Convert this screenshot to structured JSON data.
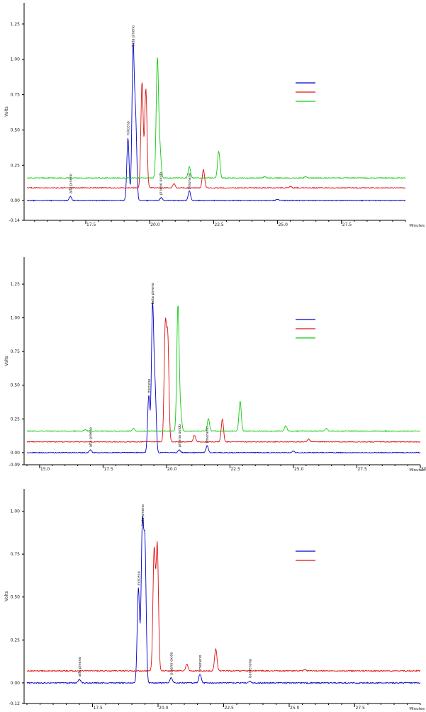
{
  "colors": {
    "blue": "#0000cc",
    "red": "#dd1111",
    "green": "#11cc11",
    "axis": "#000000"
  },
  "chart_data": [
    {
      "type": "line",
      "xunit": "Minutes",
      "ylabel": "Volts",
      "xlim": [
        15.2,
        30.0
      ],
      "ylim": [
        -0.14,
        1.4
      ],
      "xticks": [
        "17.5",
        "20.0",
        "22.5",
        "25.0",
        "27.5"
      ],
      "yticks": [
        "-0.14",
        "0.00",
        "0.25",
        "0.50",
        "0.75",
        "1.00",
        "1.25"
      ],
      "legend_position": "right",
      "annotations": [
        {
          "text": "alfa pineno",
          "x": 16.9,
          "y": 0.03
        },
        {
          "text": "mirceno",
          "x": 19.15,
          "y": 0.44
        },
        {
          "text": "beta pineno",
          "x": 19.35,
          "y": 1.07
        },
        {
          "text": "pineno oxido",
          "x": 20.42,
          "y": 0.02
        },
        {
          "text": "limoneno",
          "x": 21.55,
          "y": 0.06
        }
      ],
      "series": [
        {
          "color": "#0000cc",
          "baseline": 0.0,
          "peaks": [
            [
              16.9,
              0.03
            ],
            [
              19.15,
              0.44
            ],
            [
              19.35,
              1.07
            ],
            [
              19.45,
              0.55
            ],
            [
              20.45,
              0.02
            ],
            [
              21.55,
              0.07
            ],
            [
              25.0,
              0.01
            ]
          ]
        },
        {
          "color": "#dd1111",
          "baseline": 0.09,
          "peaks": [
            [
              19.7,
              0.84
            ],
            [
              19.85,
              0.79
            ],
            [
              20.95,
              0.12
            ],
            [
              22.1,
              0.22
            ],
            [
              25.5,
              0.1
            ]
          ]
        },
        {
          "color": "#11cc11",
          "baseline": 0.16,
          "peaks": [
            [
              20.3,
              1.0
            ],
            [
              20.4,
              0.36
            ],
            [
              21.55,
              0.24
            ],
            [
              22.7,
              0.35
            ],
            [
              24.5,
              0.17
            ],
            [
              26.1,
              0.17
            ]
          ]
        }
      ]
    },
    {
      "type": "line",
      "xunit": "Minutes",
      "ylabel": "Volts",
      "xlim": [
        14.5,
        30.0
      ],
      "ylim": [
        -0.09,
        1.45
      ],
      "xticks": [
        "15.0",
        "17.5",
        "20.0",
        "22.5",
        "25.0",
        "27.5",
        "30.0"
      ],
      "yticks": [
        "-0.09",
        "0.00",
        "0.25",
        "0.50",
        "0.75",
        "1.00",
        "1.25"
      ],
      "legend_position": "right",
      "annotations": [
        {
          "text": "alfa pineno",
          "x": 17.0,
          "y": 0.02
        },
        {
          "text": "mirceno",
          "x": 19.3,
          "y": 0.42
        },
        {
          "text": "beta pineno",
          "x": 19.45,
          "y": 1.08
        },
        {
          "text": "pineno oxido",
          "x": 20.5,
          "y": 0.02
        },
        {
          "text": "limoneno",
          "x": 21.6,
          "y": 0.05
        }
      ],
      "series": [
        {
          "color": "#0000cc",
          "baseline": 0.0,
          "peaks": [
            [
              17.0,
              0.02
            ],
            [
              19.3,
              0.42
            ],
            [
              19.45,
              1.08
            ],
            [
              19.55,
              0.45
            ],
            [
              20.5,
              0.02
            ],
            [
              21.6,
              0.05
            ],
            [
              25.0,
              0.01
            ]
          ]
        },
        {
          "color": "#dd1111",
          "baseline": 0.08,
          "peaks": [
            [
              19.95,
              0.92
            ],
            [
              20.05,
              0.83
            ],
            [
              21.1,
              0.13
            ],
            [
              22.2,
              0.25
            ],
            [
              25.6,
              0.1
            ]
          ]
        },
        {
          "color": "#11cc11",
          "baseline": 0.16,
          "peaks": [
            [
              16.8,
              0.17
            ],
            [
              18.7,
              0.18
            ],
            [
              20.45,
              1.09
            ],
            [
              20.55,
              0.3
            ],
            [
              21.65,
              0.25
            ],
            [
              22.9,
              0.38
            ],
            [
              24.7,
              0.2
            ],
            [
              26.3,
              0.18
            ]
          ]
        }
      ]
    },
    {
      "type": "line",
      "xunit": "Minutes",
      "ylabel": "Volts",
      "xlim": [
        15.0,
        30.0
      ],
      "ylim": [
        -0.12,
        1.13
      ],
      "xticks": [
        "17.5",
        "20.0",
        "22.5",
        "25.0",
        "27.5"
      ],
      "yticks": [
        "-0.12",
        "0.00",
        "0.25",
        "0.50",
        "0.75",
        "1.00"
      ],
      "legend_position": "right",
      "annotations": [
        {
          "text": "alfa pineno",
          "x": 17.0,
          "y": 0.02
        },
        {
          "text": "mirceno",
          "x": 19.25,
          "y": 0.55
        },
        {
          "text": "beta pineno",
          "x": 19.4,
          "y": 0.9
        },
        {
          "text": "pineno oxido",
          "x": 20.5,
          "y": 0.03
        },
        {
          "text": "limoneno",
          "x": 21.6,
          "y": 0.05
        },
        {
          "text": "isomenona",
          "x": 23.5,
          "y": 0.01
        }
      ],
      "series": [
        {
          "color": "#0000cc",
          "baseline": 0.0,
          "peaks": [
            [
              17.0,
              0.02
            ],
            [
              19.25,
              0.55
            ],
            [
              19.4,
              0.89
            ],
            [
              19.5,
              0.78
            ],
            [
              20.5,
              0.03
            ],
            [
              21.6,
              0.05
            ],
            [
              23.5,
              0.01
            ]
          ]
        },
        {
          "color": "#dd1111",
          "baseline": 0.07,
          "peaks": [
            [
              19.85,
              0.77
            ],
            [
              19.97,
              0.8
            ],
            [
              21.1,
              0.11
            ],
            [
              22.2,
              0.2
            ],
            [
              25.6,
              0.08
            ]
          ]
        }
      ]
    }
  ]
}
